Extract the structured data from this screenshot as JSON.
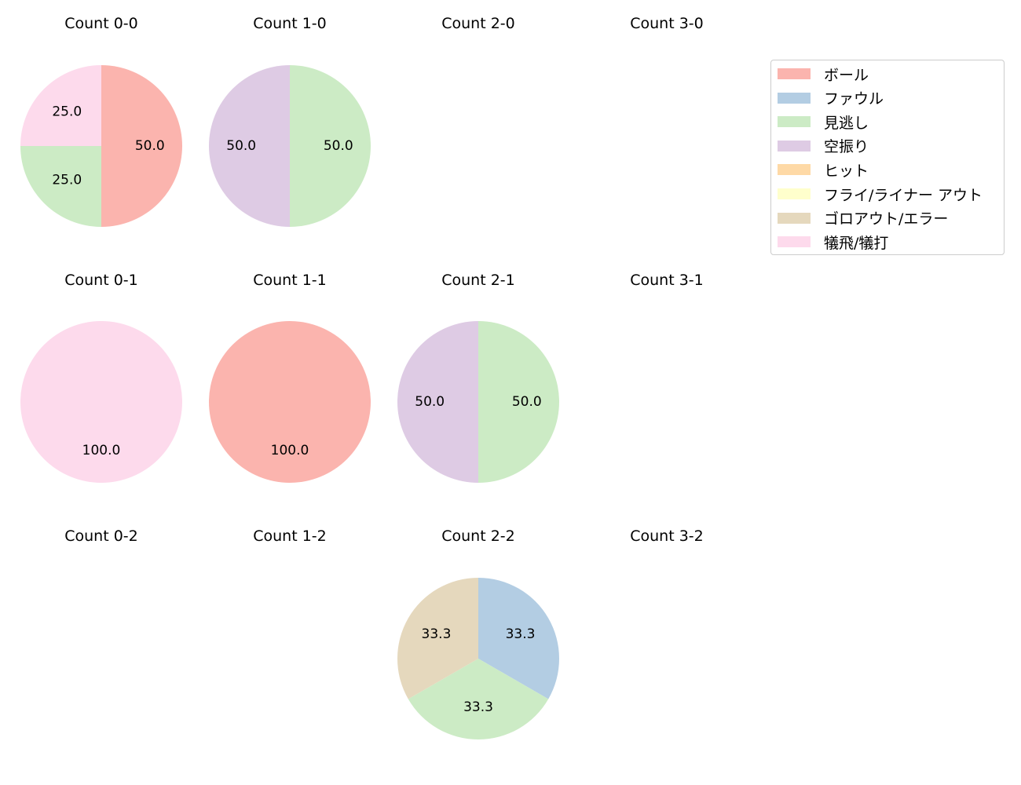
{
  "chart_data": {
    "type": "pie",
    "legend": {
      "position": "upper right",
      "entries": [
        {
          "label": "ボール",
          "color": "#fbb4ae"
        },
        {
          "label": "ファウル",
          "color": "#b3cde3"
        },
        {
          "label": "見逃し",
          "color": "#ccebc5"
        },
        {
          "label": "空振り",
          "color": "#decbe4"
        },
        {
          "label": "ヒット",
          "color": "#fed9a6"
        },
        {
          "label": "フライ/ライナー アウト",
          "color": "#ffffcc"
        },
        {
          "label": "ゴロアウト/エラー",
          "color": "#e5d8bd"
        },
        {
          "label": "犠飛/犠打",
          "color": "#fddaec"
        }
      ]
    },
    "subplots": [
      {
        "title": "Count 0-0",
        "row": 0,
        "col": 0,
        "slices": [
          {
            "category": "ボール",
            "value": 50.0
          },
          {
            "category": "見逃し",
            "value": 25.0
          },
          {
            "category": "犠飛/犠打",
            "value": 25.0
          }
        ]
      },
      {
        "title": "Count 1-0",
        "row": 0,
        "col": 1,
        "slices": [
          {
            "category": "見逃し",
            "value": 50.0
          },
          {
            "category": "空振り",
            "value": 50.0
          }
        ]
      },
      {
        "title": "Count 2-0",
        "row": 0,
        "col": 2,
        "slices": []
      },
      {
        "title": "Count 3-0",
        "row": 0,
        "col": 3,
        "slices": []
      },
      {
        "title": "Count 0-1",
        "row": 1,
        "col": 0,
        "slices": [
          {
            "category": "犠飛/犠打",
            "value": 100.0
          }
        ]
      },
      {
        "title": "Count 1-1",
        "row": 1,
        "col": 1,
        "slices": [
          {
            "category": "ボール",
            "value": 100.0
          }
        ]
      },
      {
        "title": "Count 2-1",
        "row": 1,
        "col": 2,
        "slices": [
          {
            "category": "見逃し",
            "value": 50.0
          },
          {
            "category": "空振り",
            "value": 50.0
          }
        ]
      },
      {
        "title": "Count 3-1",
        "row": 1,
        "col": 3,
        "slices": []
      },
      {
        "title": "Count 0-2",
        "row": 2,
        "col": 0,
        "slices": []
      },
      {
        "title": "Count 1-2",
        "row": 2,
        "col": 1,
        "slices": []
      },
      {
        "title": "Count 2-2",
        "row": 2,
        "col": 2,
        "slices": [
          {
            "category": "ファウル",
            "value": 33.3
          },
          {
            "category": "見逃し",
            "value": 33.3
          },
          {
            "category": "ゴロアウト/エラー",
            "value": 33.3
          }
        ]
      },
      {
        "title": "Count 3-2",
        "row": 2,
        "col": 3,
        "slices": []
      }
    ]
  }
}
